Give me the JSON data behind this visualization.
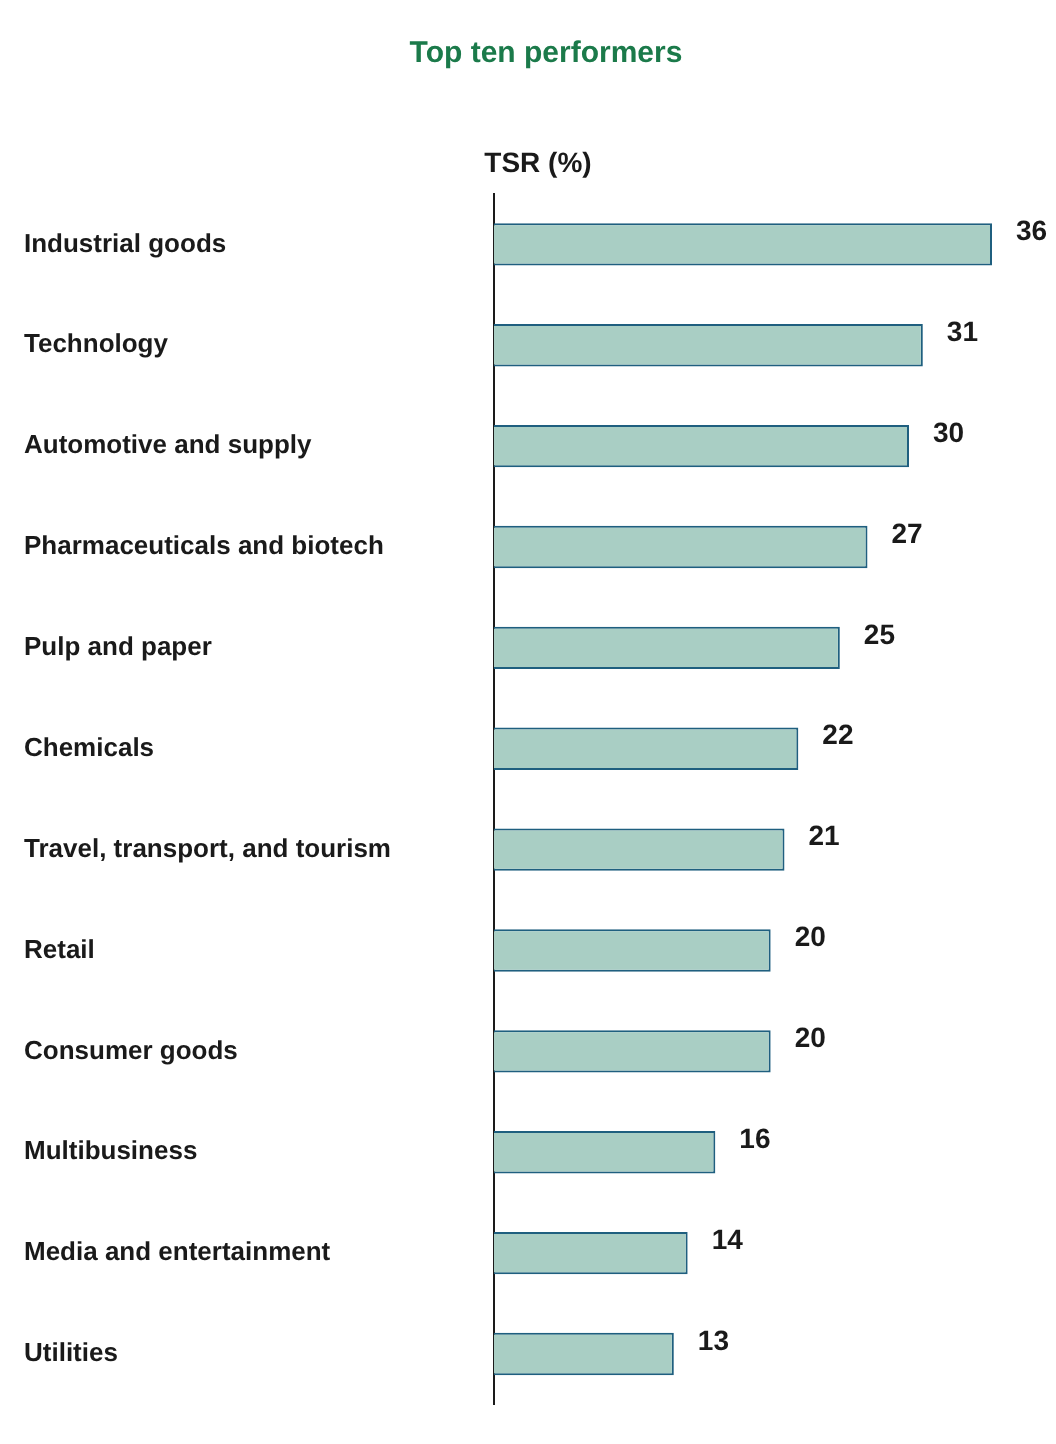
{
  "chart_data": {
    "type": "bar",
    "orientation": "horizontal",
    "title": "Top ten performers",
    "xlabel": "TSR (%)",
    "categories": [
      "Industrial goods",
      "Technology",
      "Automotive and supply",
      "Pharmaceuticals and biotech",
      "Pulp and paper",
      "Chemicals",
      "Travel, transport, and tourism",
      "Retail",
      "Consumer goods",
      "Multibusiness",
      "Media and entertainment",
      "Utilities"
    ],
    "values": [
      36,
      31,
      30,
      27,
      25,
      22,
      21,
      20,
      20,
      16,
      14,
      13
    ],
    "color": "#a9cec4",
    "data_labels": true
  }
}
